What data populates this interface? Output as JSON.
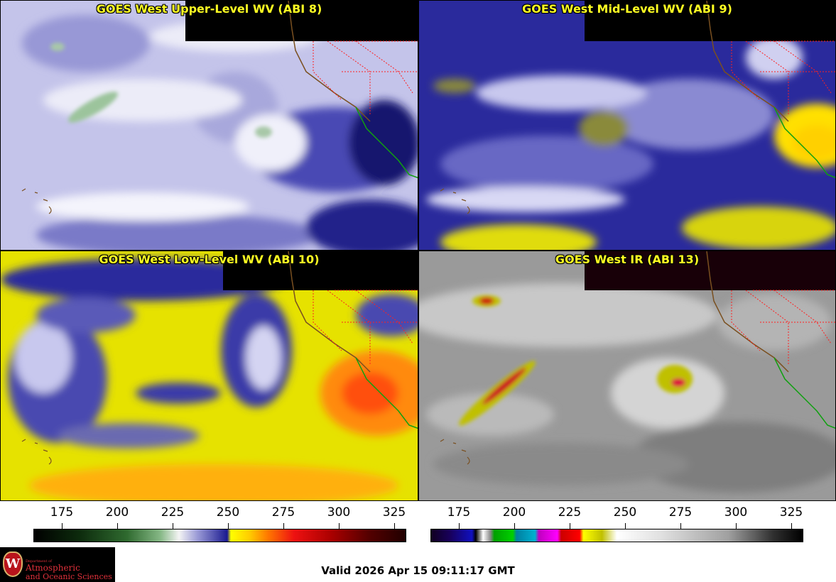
{
  "panels": {
    "upper": {
      "title": "GOES West Upper-Level WV (ABI 8)"
    },
    "mid": {
      "title": "GOES West Mid-Level WV (ABI 9)"
    },
    "low": {
      "title": "GOES West Low-Level WV (ABI 10)"
    },
    "ir": {
      "title": "GOES West IR (ABI 13)"
    }
  },
  "colorbars": {
    "wv_ticks": [
      "175",
      "200",
      "225",
      "250",
      "275",
      "300",
      "325"
    ],
    "ir_ticks": [
      "175",
      "200",
      "225",
      "250",
      "275",
      "300",
      "325"
    ]
  },
  "footer": {
    "valid": "Valid 2026 Apr 15 09:11:17 GMT"
  },
  "logo": {
    "seal": "W",
    "small": "Department of",
    "line1": "Atmospheric",
    "line2": "and Oceanic Sciences"
  },
  "colors": {
    "title_text": "#ffff22",
    "wv_upper_bg": "#c8c8ee",
    "wv_mid_bg": "#2a2a9a",
    "wv_low_bg": "#e8e400",
    "ir_bg": "#9a9a9a",
    "state_borders": "#ff2020",
    "coastline": "#7a5020",
    "mexico_coast": "#10a010"
  }
}
